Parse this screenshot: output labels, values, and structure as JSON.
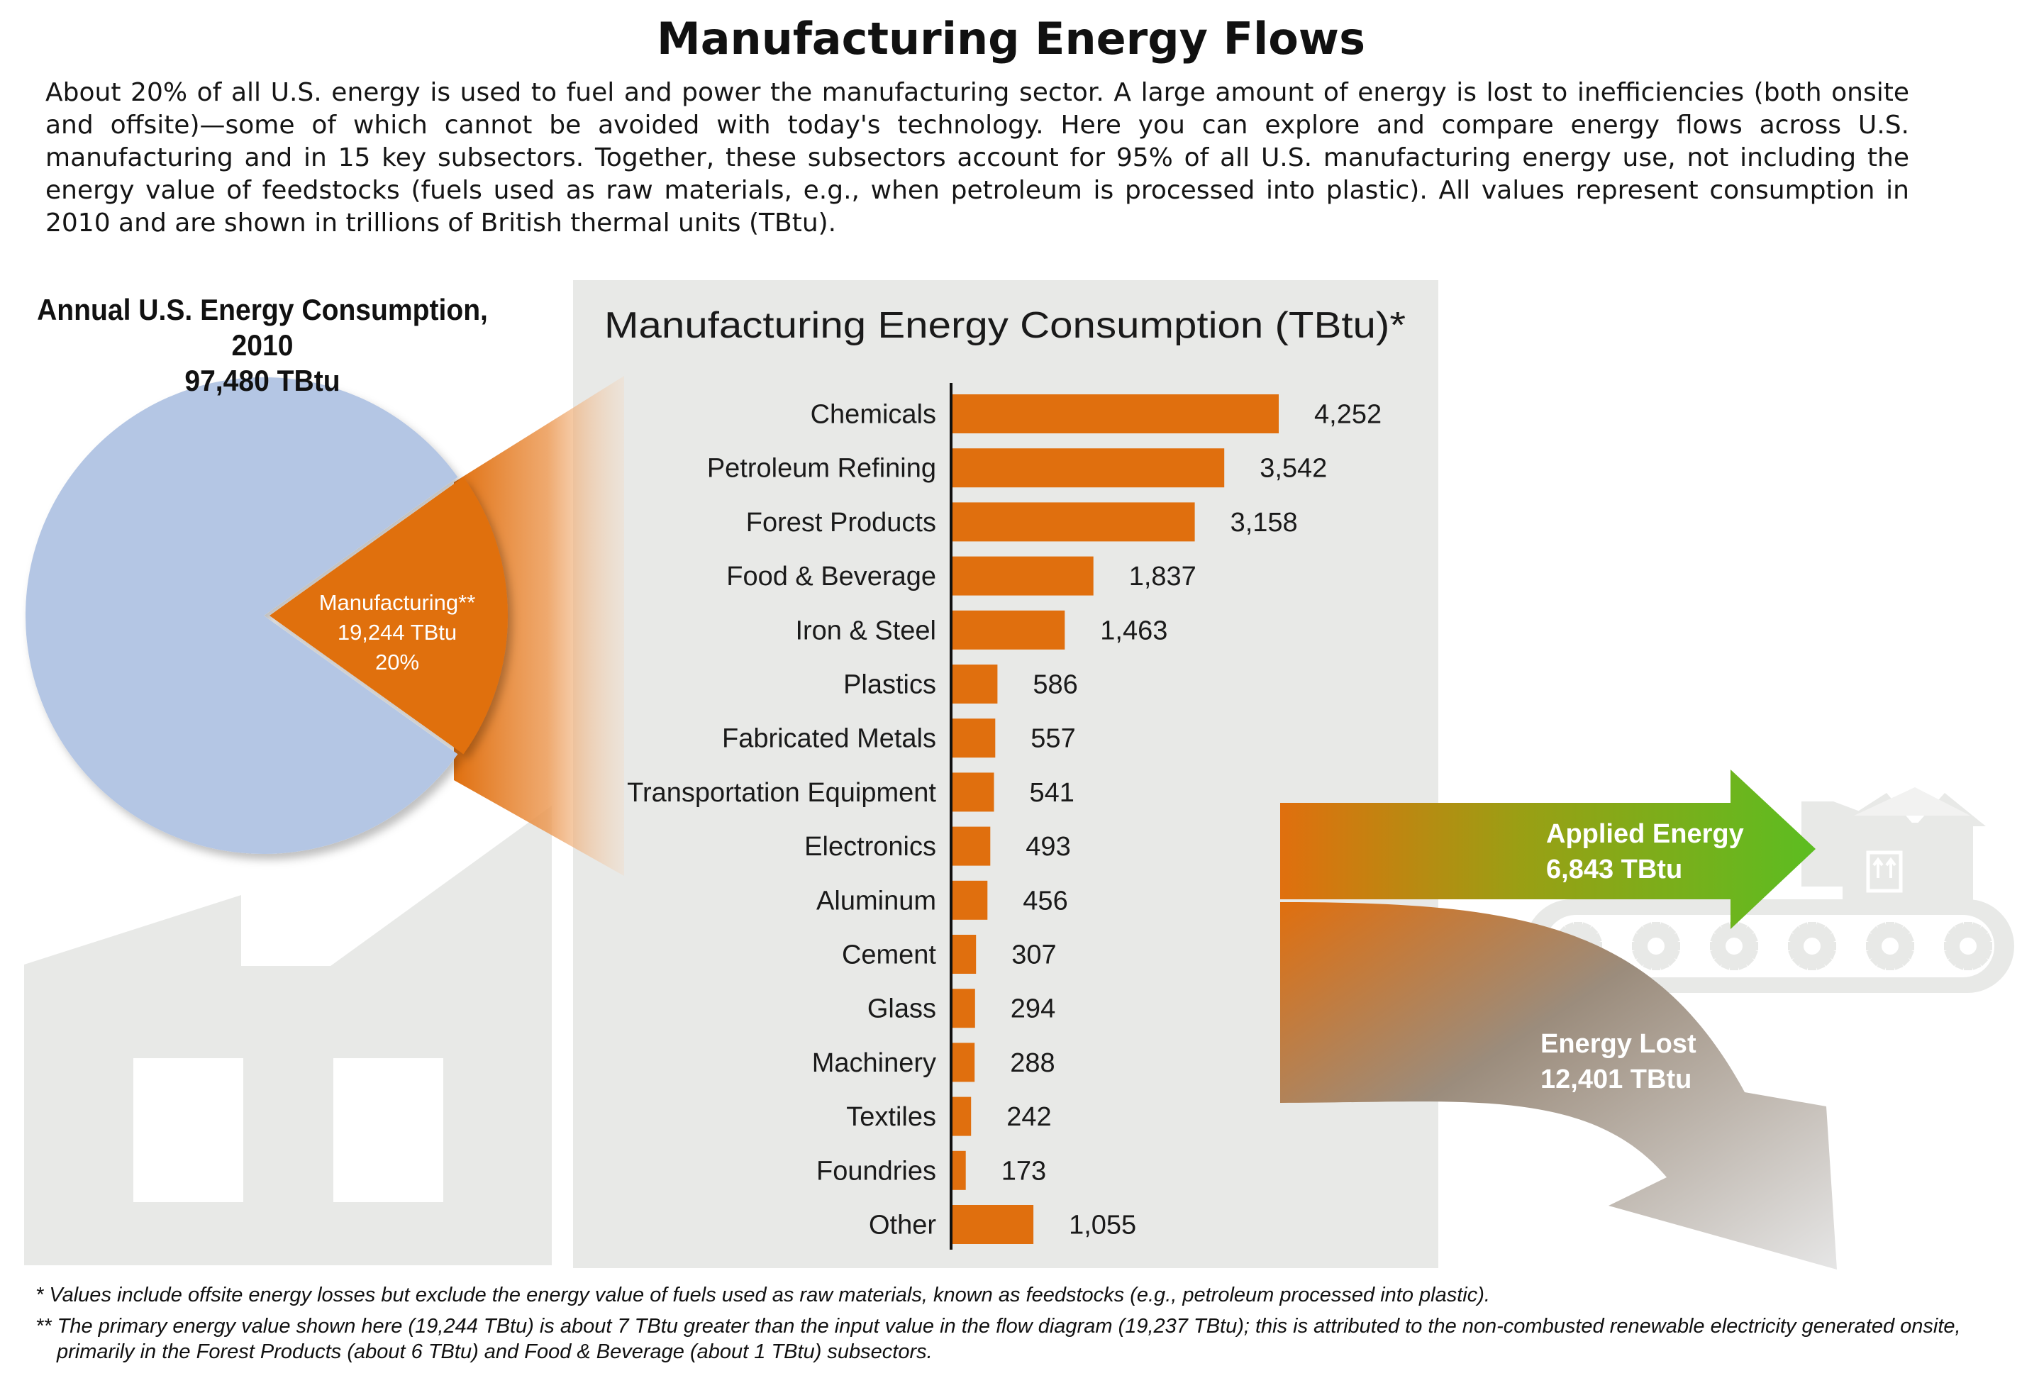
{
  "title": "Manufacturing Energy Flows",
  "intro": "About 20% of all U.S. energy is used to fuel and power the manufacturing sector. A large amount of energy is lost to inefficiencies (both onsite and offsite)—some of which cannot be avoided with today's technology. Here you can explore and compare energy flows across U.S. manufacturing and in 15 key subsectors. Together, these subsectors account for 95% of all U.S. manufacturing energy use, not including the energy value of feedstocks (fuels used as raw materials, e.g., when petroleum is processed into plastic). All values represent consumption in 2010 and are shown in trillions of British thermal units (TBtu).",
  "pie": {
    "title_line1": "Annual U.S. Energy Consumption, 2010",
    "title_line2": "97,480 TBtu",
    "slice_label_line1": "Manufacturing**",
    "slice_label_line2": "19,244 TBtu",
    "slice_label_line3": "20%",
    "total": 97480,
    "manufacturing": 19244,
    "manufacturing_share": 0.2,
    "color_rest": "#b4c6e4",
    "color_slice": "#e06f0e"
  },
  "flows": {
    "applied_label_line1": "Applied Energy",
    "applied_label_line2": "6,843 TBtu",
    "applied": 6843,
    "lost_label_line1": "Energy Lost",
    "lost_label_line2": "12,401 TBtu",
    "lost": 12401,
    "color_applied": "#5cbd21",
    "color_lost": "#b8b8b8"
  },
  "chart_data": {
    "type": "bar",
    "orientation": "horizontal",
    "title": "Manufacturing Energy Consumption (TBtu)*",
    "categories": [
      "Chemicals",
      "Petroleum Refining",
      "Forest Products",
      "Food & Beverage",
      "Iron & Steel",
      "Plastics",
      "Fabricated Metals",
      "Transportation Equipment",
      "Electronics",
      "Aluminum",
      "Cement",
      "Glass",
      "Machinery",
      "Textiles",
      "Foundries",
      "Other"
    ],
    "values": [
      4252,
      3542,
      3158,
      1837,
      1463,
      586,
      557,
      541,
      493,
      456,
      307,
      294,
      288,
      242,
      173,
      1055
    ],
    "value_labels": [
      "4,252",
      "3,542",
      "3,158",
      "1,837",
      "1,463",
      "586",
      "557",
      "541",
      "493",
      "456",
      "307",
      "294",
      "288",
      "242",
      "173",
      "1,055"
    ],
    "xlim": [
      0,
      4252
    ],
    "bar_color": "#e06f0e",
    "panel_color": "#e8e9e7",
    "grid": false
  },
  "footnotes": {
    "note1": "* Values include offsite energy losses but exclude the energy value of fuels used as raw materials, known as feedstocks (e.g., petroleum processed into plastic).",
    "note2": "** The primary energy value shown here (19,244 TBtu) is about 7 TBtu greater than the input value in the flow diagram (19,237 TBtu); this is attributed to the non-combusted renewable electricity generated onsite, primarily in the Forest Products (about 6 TBtu) and Food & Beverage (about 1 TBtu) subsectors."
  }
}
